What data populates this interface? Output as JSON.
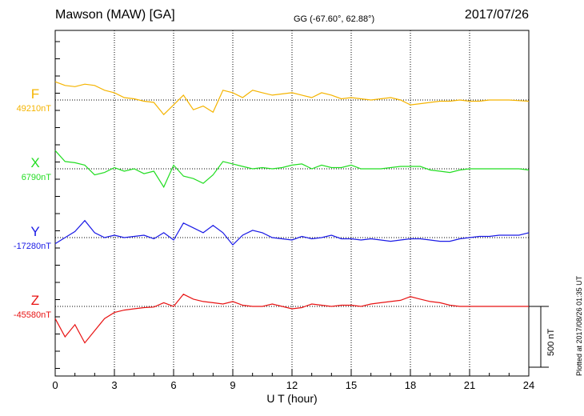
{
  "header": {
    "title": "Mawson (MAW)  [GA]",
    "coords": "GG (-67.60°,  62.88°)",
    "date": "2017/07/26"
  },
  "footnote": "Plotted at 2017/08/26 01:35 UT",
  "chart_data": {
    "type": "line",
    "title": "Mawson (MAW)  [GA]",
    "xlabel": "U T (hour)",
    "xlim": [
      0,
      24
    ],
    "x_ticks": [
      "0",
      "3",
      "6",
      "9",
      "12",
      "15",
      "18",
      "21",
      "24"
    ],
    "grid": true,
    "scale_bar": {
      "label": "500 nT",
      "value_nT": 500
    },
    "x": [
      0,
      0.5,
      1,
      1.5,
      2,
      2.5,
      3,
      3.5,
      4,
      4.5,
      5,
      5.5,
      6,
      6.5,
      7,
      7.5,
      8,
      8.5,
      9,
      9.5,
      10,
      10.5,
      11,
      11.5,
      12,
      12.5,
      13,
      13.5,
      14,
      14.5,
      15,
      15.5,
      16,
      16.5,
      17,
      17.5,
      18,
      18.5,
      19,
      19.5,
      20,
      20.5,
      21,
      21.5,
      22,
      22.5,
      23,
      23.5,
      24
    ],
    "series": [
      {
        "name": "F",
        "baseline_label": "49210nT",
        "baseline_nT": 49210,
        "color": "#f5b400",
        "values": [
          150,
          120,
          110,
          130,
          120,
          80,
          60,
          20,
          10,
          -10,
          -20,
          -120,
          -40,
          40,
          -80,
          -50,
          -100,
          80,
          60,
          20,
          80,
          60,
          40,
          50,
          60,
          40,
          20,
          60,
          40,
          10,
          20,
          10,
          0,
          10,
          20,
          0,
          -40,
          -30,
          -20,
          -10,
          -10,
          0,
          -10,
          -10,
          0,
          0,
          0,
          -5,
          -10
        ]
      },
      {
        "name": "X",
        "baseline_label": "6790nT",
        "baseline_nT": 6790,
        "color": "#22dd22",
        "values": [
          150,
          60,
          50,
          30,
          -50,
          -30,
          10,
          -20,
          0,
          -40,
          -20,
          -150,
          30,
          -60,
          -80,
          -120,
          -50,
          60,
          40,
          20,
          0,
          10,
          0,
          10,
          30,
          40,
          0,
          30,
          10,
          10,
          30,
          0,
          0,
          0,
          10,
          20,
          20,
          20,
          -10,
          -20,
          -30,
          -10,
          0,
          0,
          0,
          0,
          0,
          0,
          -10
        ]
      },
      {
        "name": "Y",
        "baseline_label": "-17280nT",
        "baseline_nT": -17280,
        "color": "#1a1ae6",
        "values": [
          -50,
          0,
          50,
          140,
          40,
          0,
          20,
          0,
          10,
          20,
          -10,
          40,
          -20,
          120,
          80,
          40,
          100,
          40,
          -60,
          20,
          60,
          40,
          0,
          -10,
          -20,
          10,
          -10,
          0,
          20,
          -10,
          -10,
          -20,
          -10,
          -20,
          -30,
          -20,
          -10,
          -10,
          -20,
          -30,
          -30,
          -10,
          0,
          10,
          10,
          20,
          20,
          20,
          40
        ]
      },
      {
        "name": "Z",
        "baseline_label": "-45580nT",
        "baseline_nT": -45580,
        "color": "#e81212",
        "values": [
          -100,
          -250,
          -150,
          -300,
          -200,
          -100,
          -50,
          -30,
          -20,
          -10,
          -5,
          30,
          0,
          100,
          60,
          40,
          30,
          20,
          40,
          10,
          0,
          0,
          20,
          0,
          -20,
          -10,
          20,
          10,
          0,
          10,
          10,
          0,
          20,
          30,
          40,
          50,
          80,
          60,
          40,
          30,
          10,
          0,
          0,
          0,
          0,
          0,
          0,
          0,
          0
        ]
      }
    ]
  }
}
